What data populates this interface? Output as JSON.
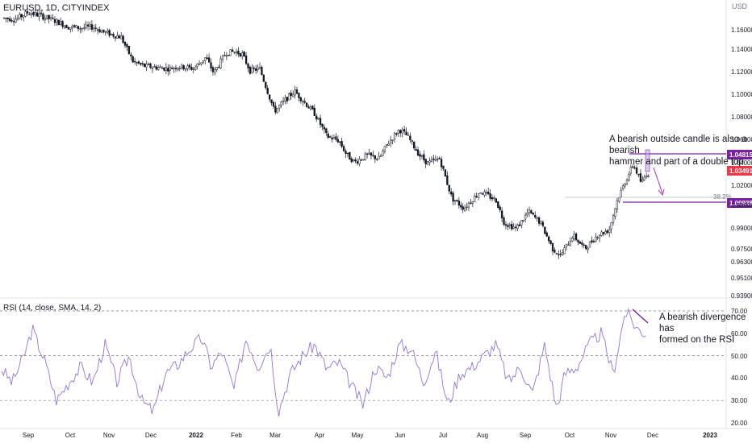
{
  "header": {
    "symbol": "EURUSD, 1D, CITYINDEX",
    "currency": "USD"
  },
  "rsi_header": "RSI (14, close, SMA, 14, 2)",
  "annotations": {
    "price_note_line1": "A bearish outside candle is also a bearish",
    "price_note_line2": "hammer and part of a double top",
    "rsi_note_line1": "A bearish divergence has",
    "rsi_note_line2": "formed on the RSI"
  },
  "colors": {
    "candle": "#131722",
    "rsi_line": "#9575cd",
    "resistance": "#7b1fa2",
    "price_badge": "#f23645",
    "fib_line": "#b2b5be"
  },
  "chart_data": [
    {
      "type": "candlestick",
      "instrument": "EURUSD",
      "timeframe": "1D",
      "y_unit": "USD",
      "y_ticks": [
        "1.16000",
        "1.14000",
        "1.12000",
        "1.10000",
        "1.08000",
        "1.06000",
        "1.04000",
        "1.02000",
        "1.00000",
        "0.99000",
        "0.97500",
        "0.96300",
        "0.95100",
        "0.93900"
      ],
      "x_ticks": [
        "Sep",
        "Oct",
        "Nov",
        "Dec",
        "2022",
        "Feb",
        "Mar",
        "Apr",
        "May",
        "Jun",
        "Jul",
        "Aug",
        "Sep",
        "Oct",
        "Nov",
        "Dec",
        "2023"
      ],
      "last_price": "1.03491",
      "levels": [
        {
          "label": "1.04815",
          "value": 1.04815
        },
        {
          "label": "1.00938",
          "value": 1.00938
        }
      ],
      "fib_label": "38.2%",
      "path_x": [
        0,
        20,
        35,
        50,
        70,
        85,
        100,
        115,
        130,
        150,
        165,
        180,
        195,
        210,
        220,
        240,
        255,
        265,
        280,
        290,
        300,
        310,
        322,
        340,
        355,
        365,
        380,
        390,
        405,
        420,
        430,
        440,
        455,
        470,
        480,
        495,
        505,
        520,
        530,
        545,
        560,
        575,
        595,
        615,
        625,
        640,
        655,
        670,
        685,
        695,
        710,
        725,
        740,
        755,
        765,
        775,
        785,
        795,
        802,
        808
      ],
      "path_y": [
        1.177,
        1.176,
        1.182,
        1.179,
        1.174,
        1.169,
        1.168,
        1.169,
        1.164,
        1.16,
        1.138,
        1.134,
        1.133,
        1.132,
        1.134,
        1.132,
        1.142,
        1.128,
        1.146,
        1.147,
        1.145,
        1.13,
        1.132,
        1.094,
        1.105,
        1.112,
        1.1,
        1.092,
        1.072,
        1.068,
        1.055,
        1.049,
        1.055,
        1.052,
        1.065,
        1.078,
        1.072,
        1.055,
        1.048,
        1.052,
        1.017,
        1.008,
        1.023,
        1.015,
        0.995,
        0.99,
        1.005,
        0.995,
        0.972,
        0.966,
        0.984,
        0.972,
        0.984,
        0.989,
        1.015,
        1.032,
        1.047,
        1.03,
        1.04,
        1.0349
      ]
    },
    {
      "type": "line",
      "title": "RSI (14, close, SMA, 14, 2)",
      "y_ticks": [
        "70.00",
        "60.00",
        "50.00",
        "40.00",
        "30.00",
        "20.00"
      ],
      "x": [
        0,
        15,
        30,
        40,
        55,
        70,
        85,
        100,
        115,
        130,
        145,
        160,
        175,
        190,
        205,
        220,
        235,
        250,
        262,
        275,
        290,
        305,
        320,
        335,
        345,
        360,
        375,
        390,
        405,
        420,
        435,
        450,
        465,
        480,
        495,
        510,
        525,
        540,
        555,
        570,
        585,
        600,
        615,
        630,
        645,
        660,
        675,
        690,
        700,
        715,
        730,
        745,
        760,
        775,
        790,
        800
      ],
      "values": [
        45,
        38,
        50,
        62,
        48,
        30,
        38,
        45,
        38,
        55,
        38,
        50,
        30,
        25,
        42,
        46,
        53,
        58,
        45,
        52,
        35,
        58,
        45,
        55,
        25,
        42,
        50,
        55,
        44,
        47,
        37,
        28,
        45,
        40,
        55,
        53,
        38,
        52,
        28,
        42,
        45,
        50,
        55,
        38,
        45,
        33,
        55,
        26,
        42,
        45,
        55,
        60,
        42,
        70,
        62,
        60
      ],
      "reference_levels": [
        70,
        50,
        30
      ]
    }
  ]
}
